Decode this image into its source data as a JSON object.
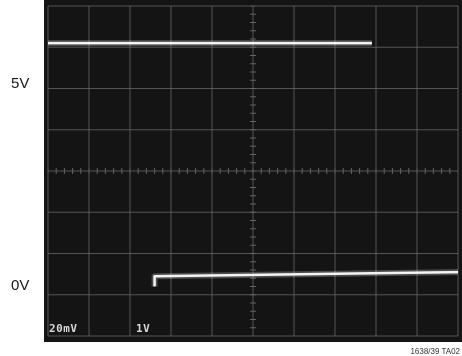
{
  "labels": {
    "top_level": "5V",
    "bottom_level": "0V"
  },
  "scope": {
    "ch1_scale": "20mV",
    "ch2_scale": "1V",
    "figure_id": "1638/39 TA02"
  },
  "colors": {
    "screen": "#141414",
    "grid": "#6a6a6a",
    "trace": "#f4f4f4"
  },
  "chart_data": {
    "type": "line",
    "grid": true,
    "x_divisions": 10,
    "y_divisions": 8,
    "series": [
      {
        "x": [
          0,
          7.9
        ],
        "y": [
          7.1,
          7.1
        ]
      },
      {
        "x": [
          2.6,
          2.6,
          10
        ],
        "y": [
          1.2,
          1.45,
          1.55
        ]
      }
    ]
  }
}
